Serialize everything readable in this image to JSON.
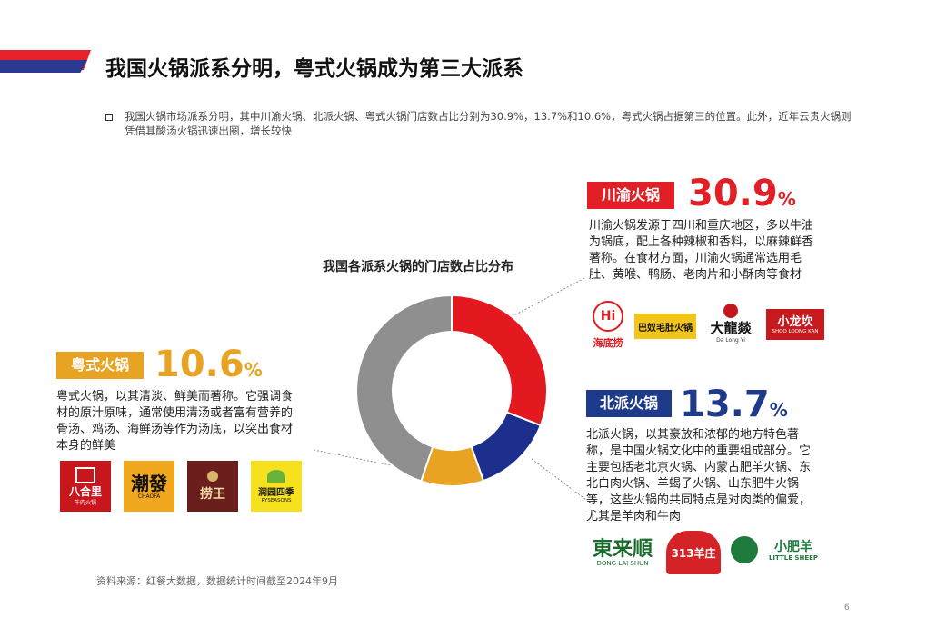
{
  "header": {
    "title": "我国火锅派系分明，粤式火锅成为第三大派系"
  },
  "intro": {
    "text": "我国火锅市场派系分明，其中川渝火锅、北派火锅、粤式火锅门店数占比分别为30.9%，13.7%和10.6%，粤式火锅占据第三的位置。此外，近年云贵火锅则凭借其酸汤火锅迅速出圈，增长较快"
  },
  "chart_data": {
    "type": "pie",
    "title": "我国各派系火锅的门店数占比分布",
    "categories": [
      "川渝火锅",
      "北派火锅",
      "粤式火锅",
      ""
    ],
    "values": [
      30.9,
      13.7,
      10.6,
      44.8
    ],
    "colors": [
      "#e3191f",
      "#1c2f8c",
      "#e9a322",
      "#8f8f8f"
    ],
    "donut": true
  },
  "labels": {
    "chuanyu": {
      "name": "川渝火锅",
      "pct": "30.9",
      "unit": "%",
      "color": "#e21f26",
      "desc": "川渝火锅发源于四川和重庆地区，多以牛油为锅底，配上各种辣椒和香料，以麻辣鲜香著称。在食材方面，川渝火锅通常选用毛肚、黄喉、鸭肠、老肉片和小酥肉等食材",
      "logos": [
        {
          "icon": "haidilao-logo",
          "text": "海底捞",
          "mark": "Hi"
        },
        {
          "icon": "bayu-logo",
          "text": "巴奴毛肚火锅"
        },
        {
          "icon": "dalongyi-logo",
          "text": "大龍燚",
          "sub": "Da Long Yi"
        },
        {
          "icon": "xiaolongkan-logo",
          "text": "小龙坎",
          "sub": "SHOO LOONG KAN"
        }
      ]
    },
    "beipai": {
      "name": "北派火锅",
      "pct": "13.7",
      "unit": "%",
      "color": "#1e3a8a",
      "desc": "北派火锅，以其豪放和浓郁的地方特色著称，是中国火锅文化中的重要组成部分。它主要包括老北京火锅、内蒙古肥羊火锅、东北白肉火锅、羊蝎子火锅、山东肥牛火锅等，这些火锅的共同特点是对肉类的偏爱，尤其是羊肉和牛肉",
      "logos": [
        {
          "icon": "donglaishun-logo",
          "text": "東来順",
          "sub": "DONG LAI SHUN"
        },
        {
          "icon": "313yangzhuang-logo",
          "text": "313羊庄"
        },
        {
          "icon": "xiaofeiyang-logo",
          "text": "小肥羊",
          "sub": "LITTLE SHEEP"
        }
      ]
    },
    "yueshi": {
      "name": "粤式火锅",
      "pct": "10.6",
      "unit": "%",
      "color": "#e9a322",
      "desc": "粤式火锅，以其清淡、鲜美而著称。它强调食材的原汁原味，通常使用清汤或者富有营养的骨汤、鸡汤、海鲜汤等作为汤底，以突出食材本身的鲜美",
      "logos": [
        {
          "icon": "bahelí-logo",
          "text": "八合里",
          "sub": "牛肉火锅"
        },
        {
          "icon": "chaofa-logo",
          "text": "潮發",
          "sub": "CHAOFA"
        },
        {
          "icon": "laowang-logo",
          "text": "捞王"
        },
        {
          "icon": "ryseasons-logo",
          "text": "润园四季",
          "sub": "RYSEASONS"
        }
      ]
    }
  },
  "footer": {
    "source": "资料来源：红餐大数据，数据统计时间截至2024年9月",
    "page": "6"
  }
}
